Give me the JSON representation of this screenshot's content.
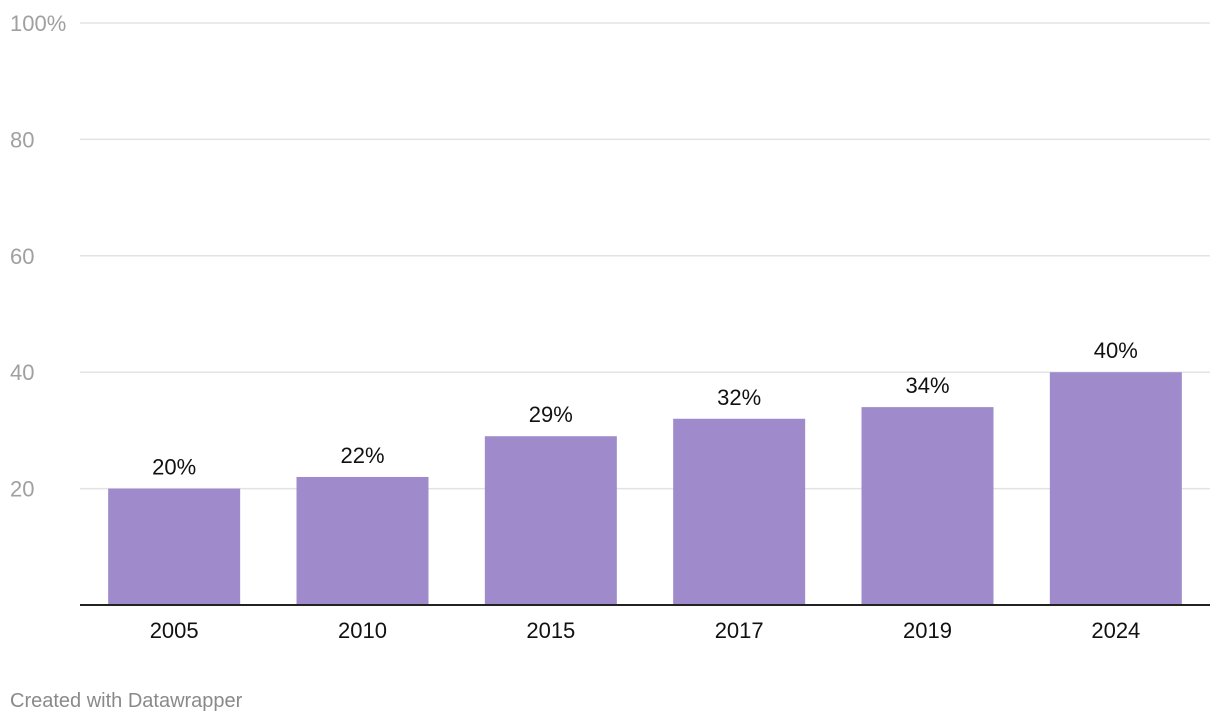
{
  "chart_data": {
    "type": "bar",
    "categories": [
      "2005",
      "2010",
      "2015",
      "2017",
      "2019",
      "2024"
    ],
    "values": [
      20,
      22,
      29,
      32,
      34,
      40
    ],
    "value_labels": [
      "20%",
      "22%",
      "29%",
      "32%",
      "34%",
      "40%"
    ],
    "title": "",
    "xlabel": "",
    "ylabel": "",
    "ylim": [
      0,
      100
    ],
    "yticks": [
      20,
      40,
      60,
      80,
      100
    ],
    "ytick_labels": [
      "20",
      "40",
      "60",
      "80",
      "100%"
    ],
    "grid": true,
    "bar_color": "#9f8bcb",
    "grid_color": "#e3e3e3",
    "axis_color": "#222222",
    "tick_label_color": "#a0a0a0"
  },
  "footer": {
    "credit": "Created with Datawrapper"
  }
}
